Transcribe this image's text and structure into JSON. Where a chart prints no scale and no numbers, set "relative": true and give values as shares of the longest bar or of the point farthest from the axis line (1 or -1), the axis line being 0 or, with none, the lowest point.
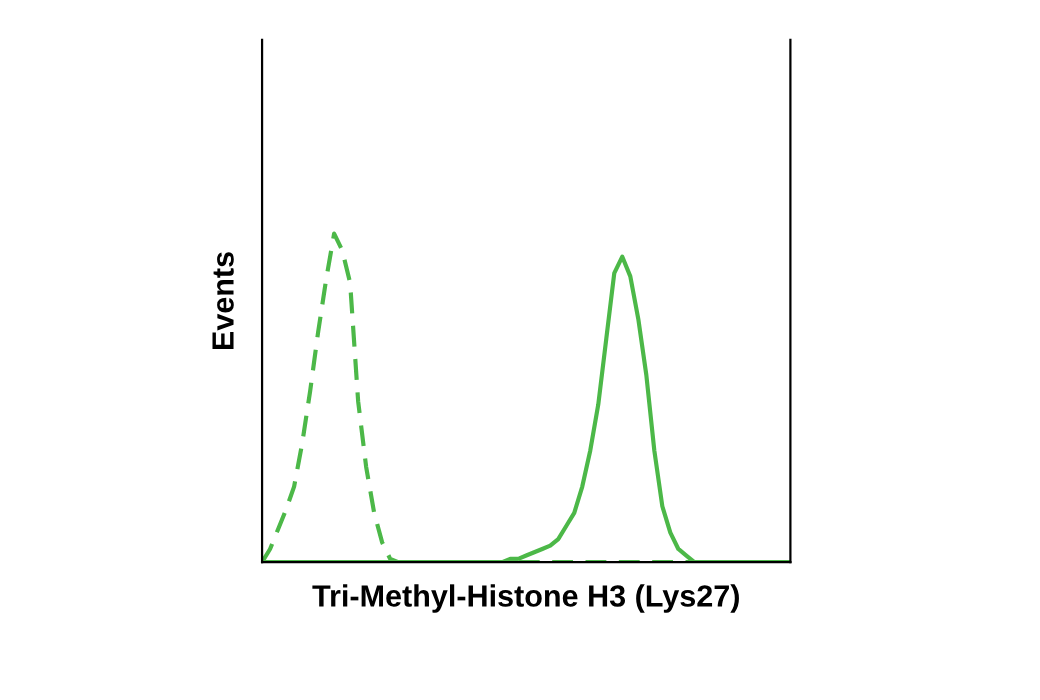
{
  "chart_data": {
    "type": "line",
    "relative": true,
    "xlabel": "Tri-Methyl-Histone H3 (Lys27)",
    "ylabel": "Events",
    "categories": [
      null,
      null,
      null,
      null,
      null,
      null,
      null,
      null,
      null,
      null,
      null,
      null,
      null,
      null,
      null,
      null,
      null,
      null,
      null,
      null,
      null,
      null,
      null,
      null,
      null,
      null,
      null,
      null,
      null,
      null,
      null,
      null,
      null,
      null,
      null,
      null,
      null,
      null,
      null,
      null,
      null,
      null,
      null,
      null,
      null,
      null,
      null,
      null,
      null,
      null,
      null,
      null,
      null,
      null,
      null,
      null,
      null,
      null,
      null,
      null,
      null,
      null,
      null,
      null,
      null,
      null,
      null
    ],
    "series": [
      {
        "color": "#4cb848",
        "line_style": "dashed",
        "values": [
          0,
          0.04,
          0.1,
          0.16,
          0.23,
          0.36,
          0.52,
          0.7,
          0.86,
          1,
          0.95,
          0.85,
          0.49,
          0.29,
          0.15,
          0.06,
          0.01,
          0,
          0,
          0,
          0,
          0,
          0,
          0,
          0,
          0,
          0,
          0,
          0,
          0,
          0,
          0,
          0,
          0,
          0,
          0,
          0,
          0,
          0,
          0,
          0,
          0,
          0,
          0,
          0,
          0,
          0,
          0,
          0,
          0,
          0,
          0,
          0,
          0,
          0,
          0,
          0,
          0,
          0,
          0,
          0,
          0,
          0,
          0,
          0,
          0,
          0
        ]
      },
      {
        "color": "#4cb848",
        "line_style": "solid",
        "values": [
          0,
          0,
          0,
          0,
          0,
          0,
          0,
          0,
          0,
          0,
          0,
          0,
          0,
          0,
          0,
          0,
          0,
          0,
          0,
          0,
          0,
          0,
          0,
          0,
          0,
          0,
          0,
          0,
          0,
          0,
          0,
          0.01,
          0.01,
          0.02,
          0.03,
          0.04,
          0.05,
          0.07,
          0.11,
          0.15,
          0.23,
          0.34,
          0.48,
          0.68,
          0.88,
          0.93,
          0.87,
          0.74,
          0.57,
          0.34,
          0.17,
          0.09,
          0.04,
          0.02,
          0,
          0,
          0,
          0,
          0,
          0,
          0,
          0,
          0,
          0,
          0,
          0,
          0
        ]
      }
    ]
  }
}
